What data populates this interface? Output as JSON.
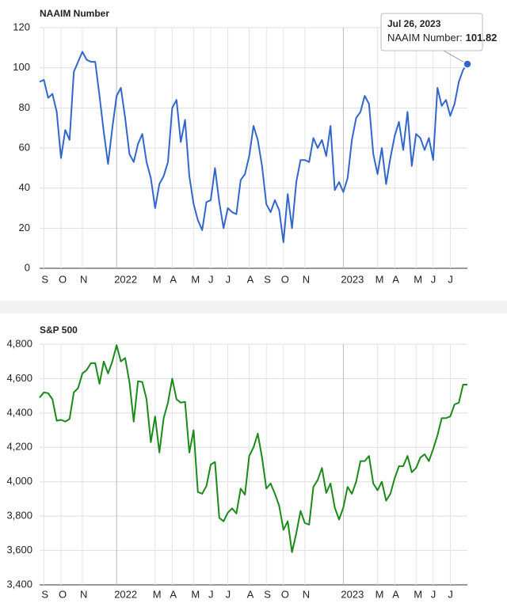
{
  "chart_data": [
    {
      "type": "line",
      "title": "NAAIM Number",
      "categories": [
        null,
        "S",
        null,
        null,
        null,
        "O",
        null,
        null,
        null,
        null,
        "N",
        null,
        null,
        null,
        null,
        null,
        null,
        null,
        "2022",
        null,
        null,
        null,
        null,
        null,
        null,
        null,
        null,
        "M",
        null,
        null,
        null,
        "A",
        null,
        null,
        null,
        null,
        "M",
        null,
        null,
        null,
        "J",
        null,
        null,
        null,
        "J",
        null,
        null,
        null,
        null,
        "A",
        null,
        null,
        null,
        "S",
        null,
        null,
        null,
        "O",
        null,
        null,
        null,
        null,
        "N",
        null,
        null,
        null,
        null,
        null,
        null,
        null,
        null,
        "2023",
        null,
        null,
        null,
        null,
        null,
        null,
        null,
        "M",
        null,
        null,
        null,
        "A",
        null,
        null,
        null,
        null,
        "M",
        null,
        null,
        null,
        "J",
        null,
        null,
        null,
        "J",
        null,
        null,
        null,
        null
      ],
      "series": [
        {
          "name": "NAAIM Number",
          "color": "#3366cc",
          "values": [
            93,
            94,
            85,
            87,
            78,
            55,
            69,
            64,
            98,
            103,
            108,
            104,
            103,
            103,
            86,
            68,
            52,
            70,
            86,
            90,
            75,
            57,
            53,
            62,
            67,
            53,
            45,
            30,
            42,
            46,
            53,
            80,
            84,
            63,
            74,
            46,
            32,
            24,
            19,
            33,
            34,
            50,
            33,
            20,
            30,
            28,
            27,
            44,
            47,
            56,
            71,
            64,
            51,
            32,
            28,
            34,
            29,
            13,
            37,
            20,
            43,
            54,
            54,
            53,
            65,
            60,
            64,
            56,
            71,
            39,
            43,
            38,
            45,
            64,
            75,
            78,
            86,
            82,
            57,
            47,
            60,
            42,
            55,
            66,
            73,
            59,
            78,
            51,
            67,
            65,
            59,
            65,
            54,
            90,
            81,
            84,
            76,
            82,
            93,
            99,
            101.82
          ]
        }
      ],
      "ylim": [
        0,
        120
      ],
      "yticks": [
        0,
        20,
        40,
        60,
        80,
        100,
        120
      ],
      "grid": true,
      "tooltip": {
        "date": "Jul 26, 2023",
        "label": "NAAIM Number:"
      }
    },
    {
      "type": "line",
      "title": "S&P 500",
      "categories": [
        null,
        "S",
        null,
        null,
        null,
        "O",
        null,
        null,
        null,
        null,
        "N",
        null,
        null,
        null,
        null,
        null,
        null,
        null,
        "2022",
        null,
        null,
        null,
        null,
        null,
        null,
        null,
        null,
        "M",
        null,
        null,
        null,
        "A",
        null,
        null,
        null,
        null,
        "M",
        null,
        null,
        null,
        "J",
        null,
        null,
        null,
        "J",
        null,
        null,
        null,
        null,
        "A",
        null,
        null,
        null,
        "S",
        null,
        null,
        null,
        "O",
        null,
        null,
        null,
        null,
        "N",
        null,
        null,
        null,
        null,
        null,
        null,
        null,
        null,
        "2023",
        null,
        null,
        null,
        null,
        null,
        null,
        null,
        "M",
        null,
        null,
        null,
        "A",
        null,
        null,
        null,
        null,
        "M",
        null,
        null,
        null,
        "J",
        null,
        null,
        null,
        "J",
        null,
        null,
        null,
        null
      ],
      "series": [
        {
          "name": "S&P 500",
          "color": "#1a8a1a",
          "values": [
            4490,
            4520,
            4515,
            4480,
            4355,
            4360,
            4350,
            4365,
            4520,
            4545,
            4630,
            4650,
            4690,
            4690,
            4570,
            4700,
            4630,
            4700,
            4795,
            4700,
            4720,
            4580,
            4350,
            4585,
            4580,
            4480,
            4230,
            4380,
            4170,
            4370,
            4460,
            4600,
            4480,
            4460,
            4465,
            4170,
            4300,
            3940,
            3930,
            3975,
            4100,
            4115,
            3790,
            3770,
            3820,
            3845,
            3815,
            3960,
            3925,
            4150,
            4200,
            4280,
            4140,
            3960,
            3990,
            3930,
            3860,
            3720,
            3770,
            3590,
            3700,
            3830,
            3760,
            3750,
            3970,
            4010,
            4080,
            3935,
            3990,
            3850,
            3780,
            3850,
            3970,
            3930,
            4000,
            4120,
            4120,
            4150,
            3990,
            3950,
            4000,
            3890,
            3930,
            4020,
            4090,
            4090,
            4150,
            4055,
            4080,
            4140,
            4160,
            4120,
            4190,
            4270,
            4370,
            4370,
            4380,
            4450,
            4460,
            4565,
            4565
          ]
        }
      ],
      "ylim": [
        3400,
        4800
      ],
      "yticks": [
        {
          "value": 3400,
          "label": "3,400"
        },
        {
          "value": 3600,
          "label": "3,600"
        },
        {
          "value": 3800,
          "label": "3,800"
        },
        {
          "value": 4000,
          "label": "4,000"
        },
        {
          "value": 4200,
          "label": "4,200"
        },
        {
          "value": 4400,
          "label": "4,400"
        },
        {
          "value": 4600,
          "label": "4,600"
        },
        {
          "value": 4800,
          "label": "4,800"
        }
      ],
      "grid": true
    }
  ]
}
